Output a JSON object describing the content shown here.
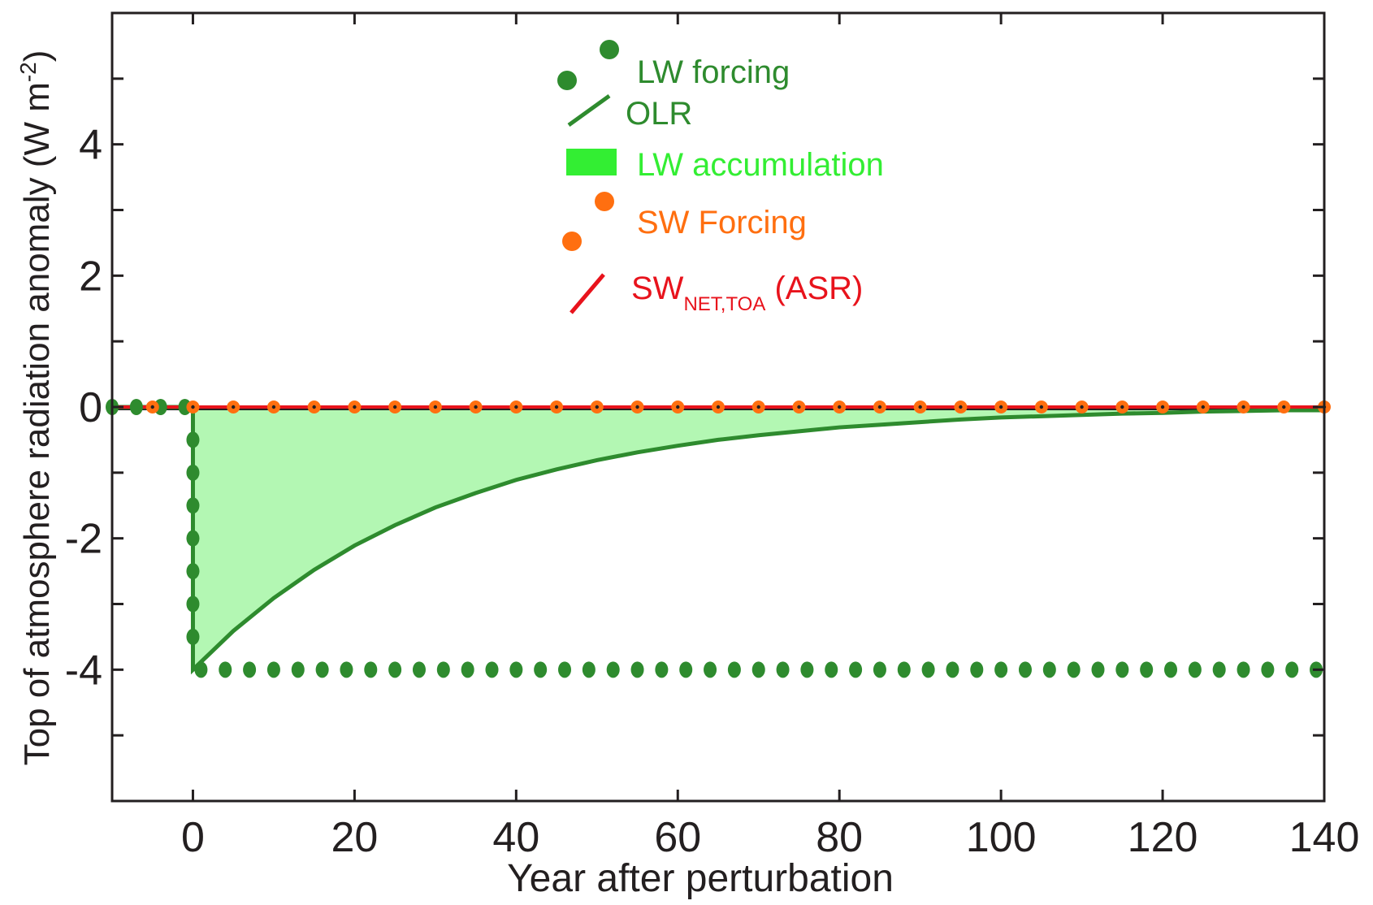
{
  "chart_data": {
    "type": "line",
    "xlabel": "Year after perturbation",
    "ylabel": "Top of atmosphere radiation anomaly (W m",
    "ylabel_sup": "-2",
    "ylabel_close": ")",
    "xlim": [
      -10,
      140
    ],
    "ylim": [
      -6,
      6
    ],
    "xticks": [
      0,
      20,
      40,
      60,
      80,
      100,
      120,
      140
    ],
    "xtick_labels": [
      "0",
      "20",
      "40",
      "60",
      "80",
      "100",
      "120",
      "140"
    ],
    "yticks": [
      4,
      2,
      0,
      -2,
      -4
    ],
    "ytick_labels": [
      "4",
      "2",
      "0",
      "-2",
      "-4"
    ],
    "grid": false,
    "legend_position": "top-center",
    "legend": {
      "lw_forcing": "LW forcing",
      "olr": "OLR",
      "lw_accumulation": "LW accumulation",
      "sw_forcing": "SW Forcing",
      "sw_net_main": "SW",
      "sw_net_sub": "NET,TOA",
      "sw_net_suffix": " (ASR)"
    },
    "colors": {
      "lw_forcing": "#2e8b2e",
      "olr": "#2e8b2e",
      "lw_accumulation_fill": "#b3f7b3",
      "lw_accumulation_legend": "#33ee33",
      "sw_forcing": "#ff6f10",
      "sw_net": "#e8131c",
      "zero_line": "#231f20"
    },
    "series": [
      {
        "name": "LW forcing",
        "kind": "markers",
        "points": [
          [
            -10,
            0
          ],
          [
            -7,
            0
          ],
          [
            -4,
            0
          ],
          [
            -1,
            0
          ],
          [
            0,
            -0.5
          ],
          [
            0,
            -1
          ],
          [
            0,
            -1.5
          ],
          [
            0,
            -2
          ],
          [
            0,
            -2.5
          ],
          [
            0,
            -3
          ],
          [
            0,
            -3.5
          ],
          [
            1,
            -4
          ],
          [
            4,
            -4
          ],
          [
            7,
            -4
          ],
          [
            10,
            -4
          ],
          [
            13,
            -4
          ],
          [
            16,
            -4
          ],
          [
            19,
            -4
          ],
          [
            22,
            -4
          ],
          [
            25,
            -4
          ],
          [
            28,
            -4
          ],
          [
            31,
            -4
          ],
          [
            34,
            -4
          ],
          [
            37,
            -4
          ],
          [
            40,
            -4
          ],
          [
            43,
            -4
          ],
          [
            46,
            -4
          ],
          [
            49,
            -4
          ],
          [
            52,
            -4
          ],
          [
            55,
            -4
          ],
          [
            58,
            -4
          ],
          [
            61,
            -4
          ],
          [
            64,
            -4
          ],
          [
            67,
            -4
          ],
          [
            70,
            -4
          ],
          [
            73,
            -4
          ],
          [
            76,
            -4
          ],
          [
            79,
            -4
          ],
          [
            82,
            -4
          ],
          [
            85,
            -4
          ],
          [
            88,
            -4
          ],
          [
            91,
            -4
          ],
          [
            94,
            -4
          ],
          [
            97,
            -4
          ],
          [
            100,
            -4
          ],
          [
            103,
            -4
          ],
          [
            106,
            -4
          ],
          [
            109,
            -4
          ],
          [
            112,
            -4
          ],
          [
            115,
            -4
          ],
          [
            118,
            -4
          ],
          [
            121,
            -4
          ],
          [
            124,
            -4
          ],
          [
            127,
            -4
          ],
          [
            130,
            -4
          ],
          [
            133,
            -4
          ],
          [
            136,
            -4
          ],
          [
            139,
            -4
          ]
        ]
      },
      {
        "name": "OLR",
        "kind": "line",
        "points": [
          [
            -10,
            0
          ],
          [
            0,
            0
          ],
          [
            0,
            -4
          ],
          [
            5,
            -3.41
          ],
          [
            10,
            -2.91
          ],
          [
            15,
            -2.48
          ],
          [
            20,
            -2.11
          ],
          [
            25,
            -1.8
          ],
          [
            30,
            -1.53
          ],
          [
            35,
            -1.31
          ],
          [
            40,
            -1.11
          ],
          [
            45,
            -0.95
          ],
          [
            50,
            -0.81
          ],
          [
            55,
            -0.69
          ],
          [
            60,
            -0.59
          ],
          [
            65,
            -0.5
          ],
          [
            70,
            -0.43
          ],
          [
            75,
            -0.37
          ],
          [
            80,
            -0.31
          ],
          [
            85,
            -0.27
          ],
          [
            90,
            -0.23
          ],
          [
            95,
            -0.19
          ],
          [
            100,
            -0.16
          ],
          [
            105,
            -0.14
          ],
          [
            110,
            -0.12
          ],
          [
            115,
            -0.1
          ],
          [
            120,
            -0.09
          ],
          [
            125,
            -0.07
          ],
          [
            130,
            -0.06
          ],
          [
            135,
            -0.05
          ],
          [
            140,
            -0.05
          ]
        ]
      },
      {
        "name": "SW Forcing",
        "kind": "markers",
        "points": [
          [
            -5,
            0
          ],
          [
            0,
            0
          ],
          [
            5,
            0
          ],
          [
            10,
            0
          ],
          [
            15,
            0
          ],
          [
            20,
            0
          ],
          [
            25,
            0
          ],
          [
            30,
            0
          ],
          [
            35,
            0
          ],
          [
            40,
            0
          ],
          [
            45,
            0
          ],
          [
            50,
            0
          ],
          [
            55,
            0
          ],
          [
            60,
            0
          ],
          [
            65,
            0
          ],
          [
            70,
            0
          ],
          [
            75,
            0
          ],
          [
            80,
            0
          ],
          [
            85,
            0
          ],
          [
            90,
            0
          ],
          [
            95,
            0
          ],
          [
            100,
            0
          ],
          [
            105,
            0
          ],
          [
            110,
            0
          ],
          [
            115,
            0
          ],
          [
            120,
            0
          ],
          [
            125,
            0
          ],
          [
            130,
            0
          ],
          [
            135,
            0
          ],
          [
            140,
            0
          ]
        ]
      },
      {
        "name": "SW NET,TOA (ASR)",
        "kind": "line",
        "points": [
          [
            -10,
            0
          ],
          [
            140,
            0
          ]
        ]
      }
    ]
  }
}
